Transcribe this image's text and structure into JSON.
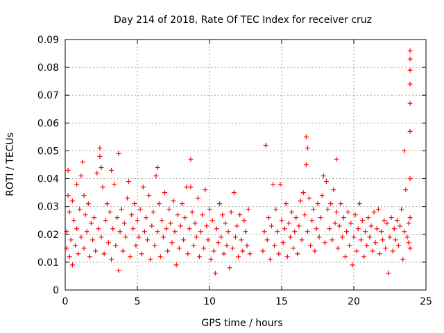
{
  "chart_data": {
    "type": "scatter",
    "title": "Day 214 of 2018, Rate Of TEC Index for receiver cruz",
    "xlabel": "GPS time / hours",
    "ylabel": "ROTI / TECUs",
    "xlim": [
      0,
      25
    ],
    "ylim": [
      0,
      0.09
    ],
    "x_ticks": [
      0,
      5,
      10,
      15,
      20,
      25
    ],
    "y_ticks": [
      0,
      0.01,
      0.02,
      0.03,
      0.04,
      0.05,
      0.06,
      0.07,
      0.08,
      0.09
    ],
    "x_tick_labels": [
      "0",
      "5",
      "10",
      "15",
      "20",
      "25"
    ],
    "y_tick_labels": [
      "0",
      "0.01",
      "0.02",
      "0.03",
      "0.04",
      "0.05",
      "0.06",
      "0.07",
      "0.08",
      "0.09"
    ],
    "grid": true,
    "marker": "+",
    "color": "#ff0000",
    "series": [
      {
        "name": "ROTI",
        "points": [
          [
            0.1,
            0.015
          ],
          [
            0.1,
            0.021
          ],
          [
            0.2,
            0.043
          ],
          [
            0.2,
            0.034
          ],
          [
            0.3,
            0.028
          ],
          [
            0.3,
            0.012
          ],
          [
            0.4,
            0.018
          ],
          [
            0.5,
            0.032
          ],
          [
            0.5,
            0.009
          ],
          [
            0.6,
            0.025
          ],
          [
            0.7,
            0.016
          ],
          [
            0.8,
            0.038
          ],
          [
            0.8,
            0.022
          ],
          [
            0.9,
            0.013
          ],
          [
            1.0,
            0.029
          ],
          [
            1.1,
            0.041
          ],
          [
            1.1,
            0.019
          ],
          [
            1.2,
            0.046
          ],
          [
            1.3,
            0.034
          ],
          [
            1.3,
            0.015
          ],
          [
            1.4,
            0.027
          ],
          [
            1.5,
            0.021
          ],
          [
            1.6,
            0.031
          ],
          [
            1.7,
            0.012
          ],
          [
            1.8,
            0.024
          ],
          [
            1.9,
            0.018
          ],
          [
            2.0,
            0.026
          ],
          [
            2.1,
            0.014
          ],
          [
            2.2,
            0.042
          ],
          [
            2.3,
            0.022
          ],
          [
            2.4,
            0.051
          ],
          [
            2.4,
            0.048
          ],
          [
            2.5,
            0.044
          ],
          [
            2.5,
            0.019
          ],
          [
            2.6,
            0.037
          ],
          [
            2.7,
            0.013
          ],
          [
            2.8,
            0.025
          ],
          [
            2.9,
            0.031
          ],
          [
            3.0,
            0.017
          ],
          [
            3.1,
            0.028
          ],
          [
            3.2,
            0.043
          ],
          [
            3.2,
            0.011
          ],
          [
            3.3,
            0.022
          ],
          [
            3.4,
            0.038
          ],
          [
            3.5,
            0.016
          ],
          [
            3.6,
            0.026
          ],
          [
            3.7,
            0.049
          ],
          [
            3.7,
            0.007
          ],
          [
            3.8,
            0.021
          ],
          [
            3.9,
            0.029
          ],
          [
            4.0,
            0.014
          ],
          [
            4.1,
            0.024
          ],
          [
            4.2,
            0.019
          ],
          [
            4.3,
            0.033
          ],
          [
            4.4,
            0.039
          ],
          [
            4.5,
            0.012
          ],
          [
            4.6,
            0.027
          ],
          [
            4.7,
            0.022
          ],
          [
            4.8,
            0.031
          ],
          [
            4.9,
            0.016
          ],
          [
            5.0,
            0.025
          ],
          [
            5.1,
            0.019
          ],
          [
            5.2,
            0.029
          ],
          [
            5.3,
            0.013
          ],
          [
            5.4,
            0.037
          ],
          [
            5.5,
            0.021
          ],
          [
            5.6,
            0.026
          ],
          [
            5.7,
            0.018
          ],
          [
            5.8,
            0.034
          ],
          [
            5.9,
            0.011
          ],
          [
            6.0,
            0.023
          ],
          [
            6.1,
            0.028
          ],
          [
            6.2,
            0.016
          ],
          [
            6.3,
            0.041
          ],
          [
            6.4,
            0.044
          ],
          [
            6.4,
            0.021
          ],
          [
            6.5,
            0.031
          ],
          [
            6.6,
            0.012
          ],
          [
            6.7,
            0.025
          ],
          [
            6.8,
            0.019
          ],
          [
            6.9,
            0.035
          ],
          [
            7.0,
            0.022
          ],
          [
            7.1,
            0.014
          ],
          [
            7.2,
            0.029
          ],
          [
            7.3,
            0.024
          ],
          [
            7.4,
            0.017
          ],
          [
            7.5,
            0.032
          ],
          [
            7.6,
            0.021
          ],
          [
            7.7,
            0.009
          ],
          [
            7.8,
            0.027
          ],
          [
            7.9,
            0.015
          ],
          [
            8.0,
            0.023
          ],
          [
            8.1,
            0.031
          ],
          [
            8.2,
            0.018
          ],
          [
            8.3,
            0.026
          ],
          [
            8.4,
            0.037
          ],
          [
            8.5,
            0.013
          ],
          [
            8.6,
            0.022
          ],
          [
            8.7,
            0.047
          ],
          [
            8.7,
            0.037
          ],
          [
            8.8,
            0.028
          ],
          [
            8.9,
            0.016
          ],
          [
            9.0,
            0.024
          ],
          [
            9.1,
            0.019
          ],
          [
            9.2,
            0.033
          ],
          [
            9.3,
            0.012
          ],
          [
            9.4,
            0.021
          ],
          [
            9.5,
            0.027
          ],
          [
            9.6,
            0.015
          ],
          [
            9.7,
            0.036
          ],
          [
            9.8,
            0.023
          ],
          [
            9.9,
            0.018
          ],
          [
            10.0,
            0.029
          ],
          [
            10.1,
            0.011
          ],
          [
            10.2,
            0.025
          ],
          [
            10.3,
            0.014
          ],
          [
            10.4,
            0.006
          ],
          [
            10.5,
            0.022
          ],
          [
            10.6,
            0.017
          ],
          [
            10.7,
            0.031
          ],
          [
            10.8,
            0.019
          ],
          [
            10.9,
            0.027
          ],
          [
            11.0,
            0.013
          ],
          [
            11.1,
            0.024
          ],
          [
            11.2,
            0.016
          ],
          [
            11.3,
            0.021
          ],
          [
            11.4,
            0.008
          ],
          [
            11.5,
            0.028
          ],
          [
            11.6,
            0.015
          ],
          [
            11.7,
            0.035
          ],
          [
            11.8,
            0.019
          ],
          [
            11.9,
            0.023
          ],
          [
            12.0,
            0.012
          ],
          [
            12.1,
            0.027
          ],
          [
            12.2,
            0.018
          ],
          [
            12.3,
            0.014
          ],
          [
            12.4,
            0.025
          ],
          [
            12.5,
            0.021
          ],
          [
            12.6,
            0.016
          ],
          [
            12.7,
            0.029
          ],
          [
            12.8,
            0.013
          ],
          [
            13.7,
            0.014
          ],
          [
            13.8,
            0.021
          ],
          [
            13.9,
            0.052
          ],
          [
            14.0,
            0.018
          ],
          [
            14.1,
            0.026
          ],
          [
            14.2,
            0.011
          ],
          [
            14.3,
            0.023
          ],
          [
            14.4,
            0.038
          ],
          [
            14.5,
            0.016
          ],
          [
            14.6,
            0.029
          ],
          [
            14.7,
            0.021
          ],
          [
            14.8,
            0.013
          ],
          [
            14.9,
            0.038
          ],
          [
            15.0,
            0.025
          ],
          [
            15.1,
            0.017
          ],
          [
            15.2,
            0.022
          ],
          [
            15.3,
            0.031
          ],
          [
            15.4,
            0.012
          ],
          [
            15.5,
            0.024
          ],
          [
            15.6,
            0.019
          ],
          [
            15.7,
            0.028
          ],
          [
            15.8,
            0.015
          ],
          [
            15.9,
            0.021
          ],
          [
            16.0,
            0.026
          ],
          [
            16.1,
            0.013
          ],
          [
            16.2,
            0.023
          ],
          [
            16.3,
            0.032
          ],
          [
            16.4,
            0.018
          ],
          [
            16.5,
            0.035
          ],
          [
            16.6,
            0.027
          ],
          [
            16.7,
            0.045
          ],
          [
            16.7,
            0.055
          ],
          [
            16.8,
            0.051
          ],
          [
            16.8,
            0.021
          ],
          [
            16.9,
            0.033
          ],
          [
            17.0,
            0.016
          ],
          [
            17.1,
            0.025
          ],
          [
            17.2,
            0.029
          ],
          [
            17.3,
            0.014
          ],
          [
            17.4,
            0.022
          ],
          [
            17.5,
            0.031
          ],
          [
            17.6,
            0.019
          ],
          [
            17.7,
            0.026
          ],
          [
            17.8,
            0.034
          ],
          [
            17.9,
            0.041
          ],
          [
            18.0,
            0.017
          ],
          [
            18.1,
            0.039
          ],
          [
            18.2,
            0.029
          ],
          [
            18.3,
            0.022
          ],
          [
            18.4,
            0.031
          ],
          [
            18.5,
            0.018
          ],
          [
            18.6,
            0.036
          ],
          [
            18.7,
            0.024
          ],
          [
            18.8,
            0.047
          ],
          [
            18.8,
            0.028
          ],
          [
            18.9,
            0.015
          ],
          [
            19.0,
            0.023
          ],
          [
            19.1,
            0.031
          ],
          [
            19.2,
            0.019
          ],
          [
            19.3,
            0.026
          ],
          [
            19.4,
            0.012
          ],
          [
            19.5,
            0.021
          ],
          [
            19.6,
            0.028
          ],
          [
            19.7,
            0.016
          ],
          [
            19.8,
            0.024
          ],
          [
            19.9,
            0.009
          ],
          [
            20.0,
            0.019
          ],
          [
            20.1,
            0.027
          ],
          [
            20.2,
            0.014
          ],
          [
            20.3,
            0.022
          ],
          [
            20.4,
            0.031
          ],
          [
            20.5,
            0.018
          ],
          [
            20.6,
            0.025
          ],
          [
            20.7,
            0.012
          ],
          [
            20.8,
            0.021
          ],
          [
            20.9,
            0.016
          ],
          [
            21.0,
            0.026
          ],
          [
            21.1,
            0.019
          ],
          [
            21.2,
            0.023
          ],
          [
            21.3,
            0.014
          ],
          [
            21.4,
            0.028
          ],
          [
            21.5,
            0.017
          ],
          [
            21.6,
            0.022
          ],
          [
            21.7,
            0.029
          ],
          [
            21.8,
            0.013
          ],
          [
            21.9,
            0.021
          ],
          [
            22.0,
            0.018
          ],
          [
            22.1,
            0.025
          ],
          [
            22.2,
            0.015
          ],
          [
            22.3,
            0.024
          ],
          [
            22.4,
            0.006
          ],
          [
            22.5,
            0.019
          ],
          [
            22.6,
            0.026
          ],
          [
            22.7,
            0.014
          ],
          [
            22.8,
            0.022
          ],
          [
            22.9,
            0.018
          ],
          [
            23.0,
            0.025
          ],
          [
            23.1,
            0.016
          ],
          [
            23.2,
            0.023
          ],
          [
            23.3,
            0.029
          ],
          [
            23.4,
            0.011
          ],
          [
            23.5,
            0.021
          ],
          [
            23.5,
            0.05
          ],
          [
            23.6,
            0.036
          ],
          [
            23.7,
            0.019
          ],
          [
            23.8,
            0.024
          ],
          [
            23.8,
            0.017
          ],
          [
            23.9,
            0.086
          ],
          [
            23.9,
            0.083
          ],
          [
            23.9,
            0.079
          ],
          [
            23.9,
            0.074
          ],
          [
            23.9,
            0.067
          ],
          [
            23.9,
            0.057
          ],
          [
            23.9,
            0.04
          ],
          [
            23.9,
            0.026
          ],
          [
            23.9,
            0.015
          ]
        ]
      }
    ]
  }
}
